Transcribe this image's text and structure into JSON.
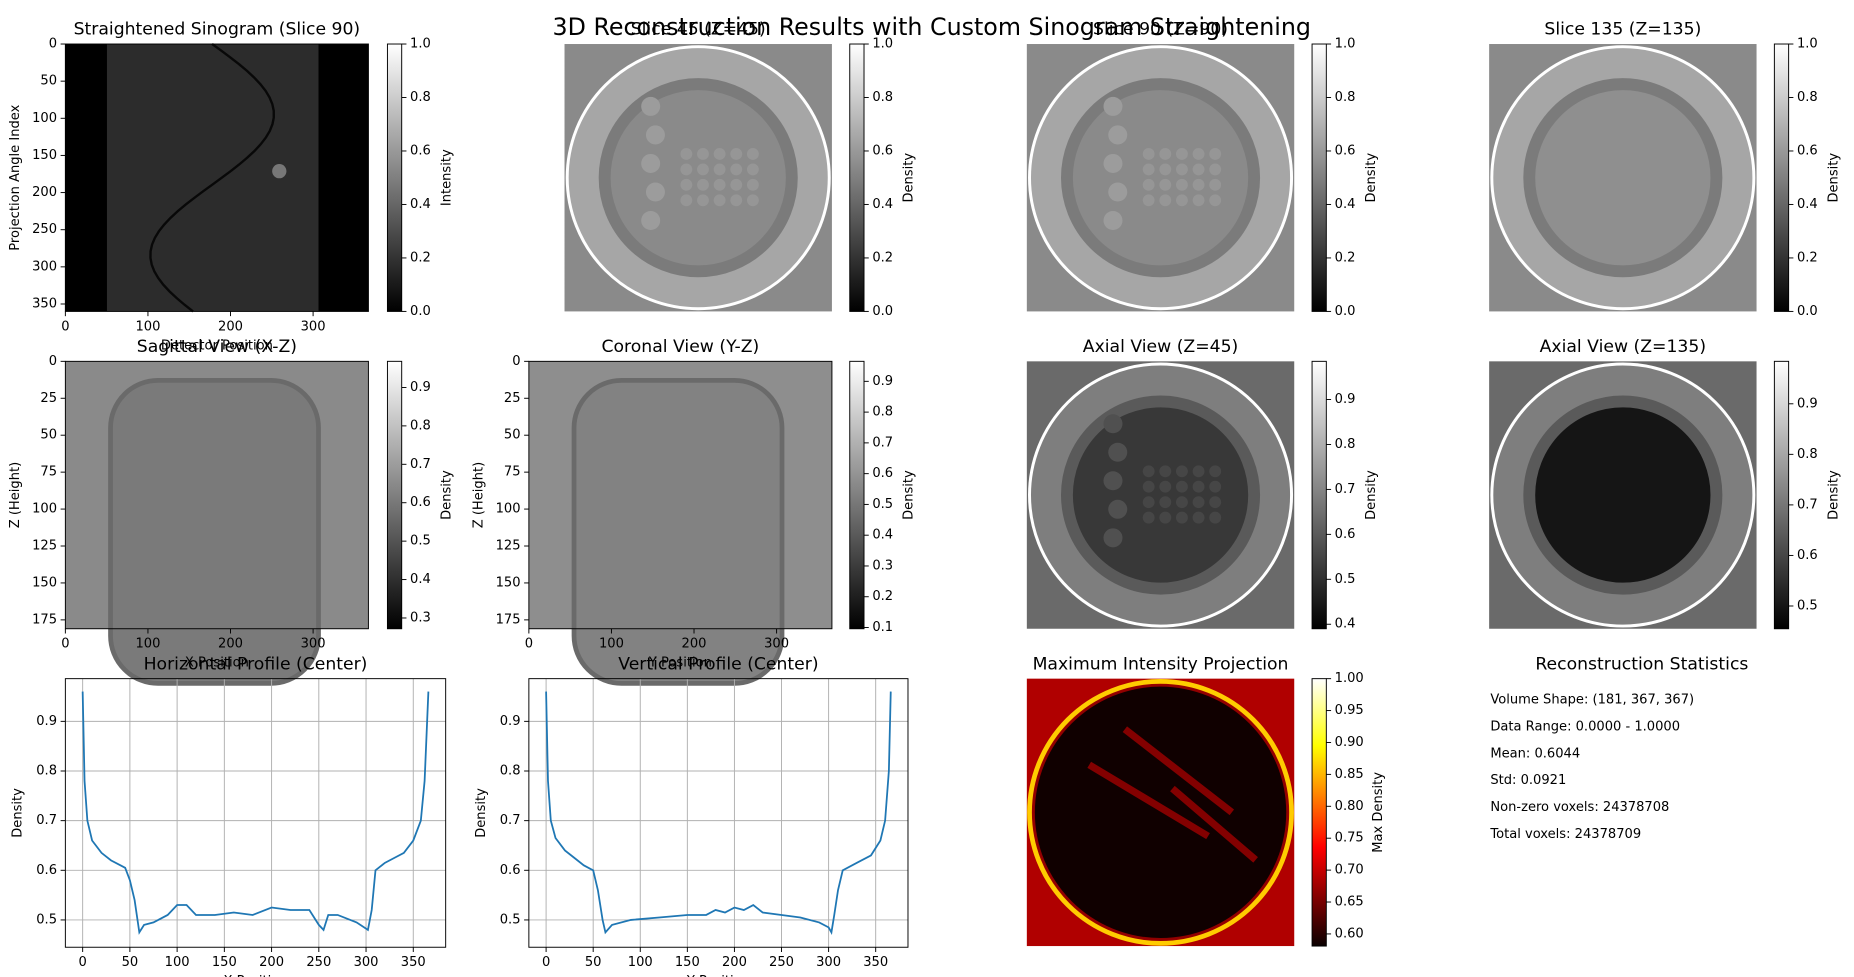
{
  "title": "3D Reconstruction Results with Custom Sinogram Straightening",
  "chart_data": [
    {
      "type": "image",
      "title": "Straightened Sinogram (Slice 90)",
      "xlabel": "Detector Position",
      "ylabel": "Projection Angle Index",
      "xlim": [
        0,
        367
      ],
      "ylim": [
        360,
        0
      ],
      "xticks": [
        0,
        100,
        200,
        300
      ],
      "yticks": [
        0,
        50,
        100,
        150,
        200,
        250,
        300,
        350
      ],
      "colorbar": {
        "label": "Intensity",
        "cmap": "gray",
        "lim": [
          0,
          1
        ],
        "ticks": [
          {
            "value": 0,
            "label": "0.0"
          },
          0.2,
          0.4,
          0.6,
          0.8,
          {
            "value": 1,
            "label": "1.0"
          }
        ]
      }
    },
    {
      "type": "image",
      "title": "Slice 45 (Z=45)",
      "colorbar": {
        "label": "Density",
        "cmap": "gray",
        "lim": [
          0,
          1
        ],
        "ticks": [
          {
            "value": 0,
            "label": "0.0"
          },
          0.2,
          0.4,
          0.6,
          0.8,
          {
            "value": 1,
            "label": "1.0"
          }
        ]
      }
    },
    {
      "type": "image",
      "title": "Slice 90 (Z=90)",
      "colorbar": {
        "label": "Density",
        "cmap": "gray",
        "lim": [
          0,
          1
        ],
        "ticks": [
          {
            "value": 0,
            "label": "0.0"
          },
          0.2,
          0.4,
          0.6,
          0.8,
          {
            "value": 1,
            "label": "1.0"
          }
        ]
      }
    },
    {
      "type": "image",
      "title": "Slice 135 (Z=135)",
      "colorbar": {
        "label": "Density",
        "cmap": "gray",
        "lim": [
          0,
          1
        ],
        "ticks": [
          {
            "value": 0,
            "label": "0.0"
          },
          0.2,
          0.4,
          0.6,
          0.8,
          {
            "value": 1,
            "label": "1.0"
          }
        ]
      }
    },
    {
      "type": "image",
      "title": "Sagittal View (X-Z)",
      "xlabel": "X Position",
      "ylabel": "Z (Height)",
      "xlim": [
        0,
        367
      ],
      "ylim": [
        181,
        0
      ],
      "xticks": [
        0,
        100,
        200,
        300
      ],
      "yticks": [
        0,
        25,
        50,
        75,
        100,
        125,
        150,
        175
      ],
      "colorbar": {
        "label": "Density",
        "cmap": "gray",
        "lim": [
          0.272,
          0.968
        ],
        "ticks": [
          0.3,
          0.4,
          0.5,
          0.6,
          0.7,
          0.8,
          0.9
        ]
      }
    },
    {
      "type": "image",
      "title": "Coronal View (Y-Z)",
      "xlabel": "Y Position",
      "ylabel": "Z (Height)",
      "xlim": [
        0,
        367
      ],
      "ylim": [
        181,
        0
      ],
      "xticks": [
        0,
        100,
        200,
        300
      ],
      "yticks": [
        0,
        25,
        50,
        75,
        100,
        125,
        150,
        175
      ],
      "colorbar": {
        "label": "Density",
        "cmap": "gray",
        "lim": [
          0.096,
          0.965
        ],
        "ticks": [
          0.1,
          0.2,
          0.3,
          0.4,
          0.5,
          0.6,
          0.7,
          0.8,
          0.9
        ]
      }
    },
    {
      "type": "image",
      "title": "Axial View (Z=45)",
      "colorbar": {
        "label": "Density",
        "cmap": "gray",
        "lim": [
          0.39,
          0.985
        ],
        "ticks": [
          0.4,
          0.5,
          0.6,
          0.7,
          0.8,
          0.9
        ]
      }
    },
    {
      "type": "image",
      "title": "Axial View (Z=135)",
      "colorbar": {
        "label": "Density",
        "cmap": "gray",
        "lim": [
          0.455,
          0.984
        ],
        "ticks": [
          0.5,
          0.6,
          0.7,
          0.8,
          0.9
        ]
      }
    },
    {
      "type": "line",
      "title": "Horizontal Profile (Center)",
      "xlabel": "X Position",
      "ylabel": "Density",
      "color": "#1f77b4",
      "grid": true,
      "xlim": [
        -18.3,
        384.3
      ],
      "ylim": [
        0.445,
        0.986
      ],
      "xticks": [
        0,
        50,
        100,
        150,
        200,
        250,
        300,
        350
      ],
      "yticks": [
        0.5,
        0.6,
        0.7,
        0.8,
        0.9
      ],
      "x": [
        0,
        2,
        5,
        10,
        20,
        30,
        40,
        45,
        50,
        55,
        60,
        65,
        75,
        90,
        100,
        110,
        120,
        140,
        160,
        180,
        200,
        220,
        240,
        250,
        255,
        260,
        270,
        290,
        302,
        306,
        310,
        320,
        330,
        340,
        350,
        358,
        362,
        366
      ],
      "values": [
        0.96,
        0.78,
        0.7,
        0.66,
        0.635,
        0.62,
        0.61,
        0.605,
        0.58,
        0.54,
        0.475,
        0.49,
        0.495,
        0.51,
        0.53,
        0.53,
        0.51,
        0.51,
        0.515,
        0.51,
        0.525,
        0.52,
        0.52,
        0.49,
        0.48,
        0.51,
        0.51,
        0.495,
        0.48,
        0.52,
        0.6,
        0.615,
        0.625,
        0.635,
        0.66,
        0.7,
        0.78,
        0.96
      ]
    },
    {
      "type": "line",
      "title": "Vertical Profile (Center)",
      "xlabel": "Y Position",
      "ylabel": "Density",
      "color": "#1f77b4",
      "grid": true,
      "xlim": [
        -18.3,
        384.3
      ],
      "ylim": [
        0.445,
        0.986
      ],
      "xticks": [
        0,
        50,
        100,
        150,
        200,
        250,
        300,
        350
      ],
      "yticks": [
        0.5,
        0.6,
        0.7,
        0.8,
        0.9
      ],
      "x": [
        0,
        2,
        5,
        10,
        20,
        30,
        40,
        50,
        55,
        60,
        63,
        70,
        90,
        120,
        150,
        170,
        180,
        190,
        200,
        210,
        220,
        230,
        250,
        270,
        290,
        300,
        303,
        306,
        310,
        315,
        330,
        345,
        355,
        360,
        364,
        366
      ],
      "values": [
        0.96,
        0.78,
        0.7,
        0.665,
        0.64,
        0.625,
        0.61,
        0.6,
        0.56,
        0.5,
        0.475,
        0.49,
        0.5,
        0.505,
        0.51,
        0.51,
        0.52,
        0.515,
        0.525,
        0.52,
        0.53,
        0.515,
        0.51,
        0.505,
        0.495,
        0.485,
        0.475,
        0.51,
        0.56,
        0.6,
        0.615,
        0.63,
        0.66,
        0.7,
        0.8,
        0.96
      ]
    },
    {
      "type": "image",
      "title": "Maximum Intensity Projection",
      "colorbar": {
        "label": "Max Density",
        "cmap": "hot",
        "lim": [
          0.581,
          1.0
        ],
        "ticks": [
          {
            "value": 0.6,
            "label": "0.60"
          },
          0.65,
          {
            "value": 0.7,
            "label": "0.70"
          },
          0.75,
          {
            "value": 0.8,
            "label": "0.80"
          },
          0.85,
          {
            "value": 0.9,
            "label": "0.90"
          },
          0.95,
          {
            "value": 1.0,
            "label": "1.00"
          }
        ]
      }
    },
    {
      "type": "text",
      "title": "Reconstruction Statistics",
      "lines": [
        "Volume Shape: (181, 367, 367)",
        "Data Range: 0.0000 - 1.0000",
        "Mean: 0.6044",
        "Std: 0.0921",
        "Non-zero voxels: 24378708",
        "Total voxels: 24378709"
      ]
    }
  ]
}
